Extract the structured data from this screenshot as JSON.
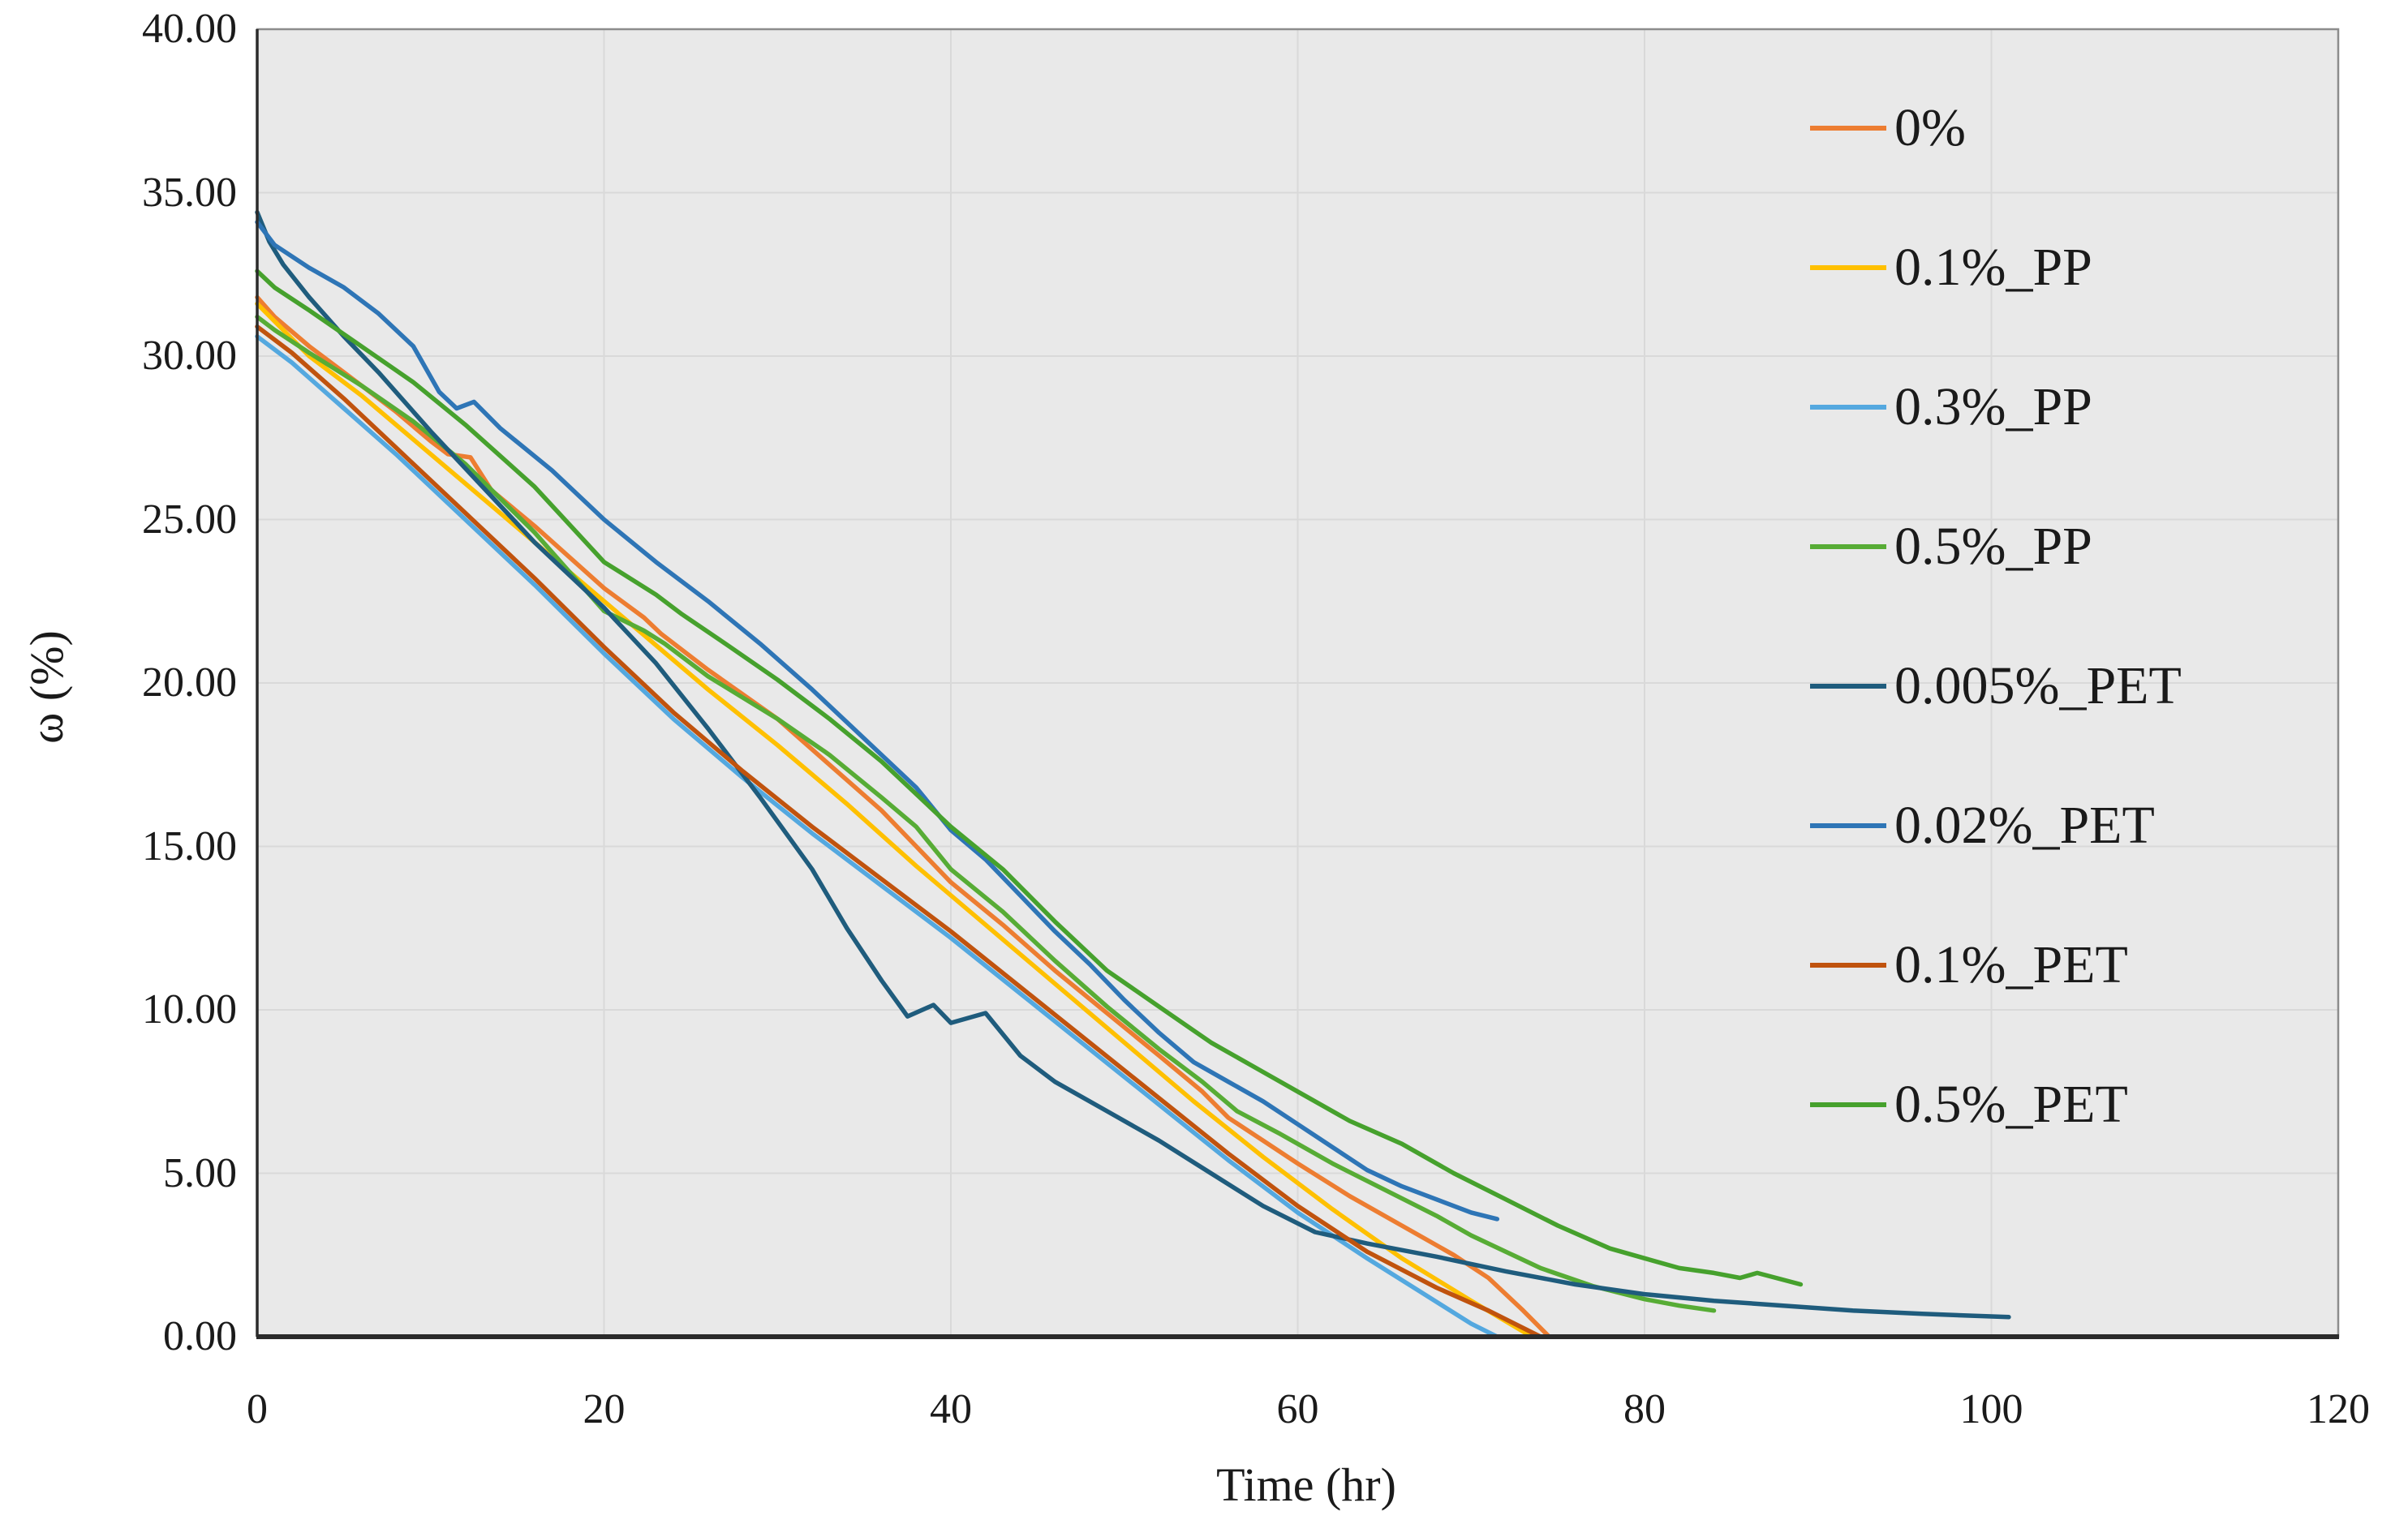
{
  "chart_data": {
    "type": "line",
    "title": "",
    "xlabel": "Time (hr)",
    "ylabel": "ω (%)",
    "xlim": [
      0,
      120
    ],
    "ylim": [
      0,
      40
    ],
    "x_ticks": [
      "0",
      "20",
      "40",
      "60",
      "80",
      "100",
      "120"
    ],
    "x_tick_values": [
      0,
      20,
      40,
      60,
      80,
      100,
      120
    ],
    "y_ticks": [
      "0.00",
      "5.00",
      "10.00",
      "15.00",
      "20.00",
      "25.00",
      "30.00",
      "35.00",
      "40.00"
    ],
    "y_tick_values": [
      0,
      5,
      10,
      15,
      20,
      25,
      30,
      35,
      40
    ],
    "grid": true,
    "legend_position": "inside-right",
    "colors": {
      "plot_background": "#e9e9e9",
      "page_background": "#ffffff",
      "gridline": "#d9d9d9",
      "plot_border": "#8c8c8c",
      "axis_line": "#2b2b2b",
      "text": "#1a1a1a"
    },
    "series": [
      {
        "name": "0%",
        "color": "#ED7D31",
        "points": [
          [
            0,
            31.8
          ],
          [
            1,
            31.2
          ],
          [
            3,
            30.3
          ],
          [
            5,
            29.5
          ],
          [
            8,
            28.3
          ],
          [
            10,
            27.4
          ],
          [
            11,
            27.0
          ],
          [
            12.3,
            26.9
          ],
          [
            13.5,
            25.9
          ],
          [
            16,
            24.8
          ],
          [
            20,
            22.9
          ],
          [
            22.3,
            22.0
          ],
          [
            23.3,
            21.5
          ],
          [
            26,
            20.4
          ],
          [
            30,
            18.9
          ],
          [
            33,
            17.5
          ],
          [
            36,
            16.1
          ],
          [
            38,
            15.0
          ],
          [
            40,
            13.9
          ],
          [
            43,
            12.6
          ],
          [
            46,
            11.2
          ],
          [
            49,
            9.9
          ],
          [
            52,
            8.6
          ],
          [
            54.5,
            7.5
          ],
          [
            56,
            6.7
          ],
          [
            58,
            6.0
          ],
          [
            60,
            5.3
          ],
          [
            63,
            4.3
          ],
          [
            66,
            3.4
          ],
          [
            69,
            2.5
          ],
          [
            71,
            1.8
          ],
          [
            73,
            0.8
          ],
          [
            74.5,
            0
          ]
        ]
      },
      {
        "name": "0.1%_PP",
        "color": "#FFC000",
        "points": [
          [
            0,
            31.6
          ],
          [
            3,
            30.0
          ],
          [
            6,
            28.8
          ],
          [
            10,
            27.0
          ],
          [
            14,
            25.2
          ],
          [
            18,
            23.4
          ],
          [
            22,
            21.6
          ],
          [
            26,
            19.8
          ],
          [
            30,
            18.1
          ],
          [
            34,
            16.3
          ],
          [
            38,
            14.4
          ],
          [
            42,
            12.6
          ],
          [
            46,
            10.8
          ],
          [
            50,
            9.0
          ],
          [
            54,
            7.2
          ],
          [
            58,
            5.5
          ],
          [
            62,
            3.9
          ],
          [
            66,
            2.4
          ],
          [
            70,
            1.1
          ],
          [
            73.5,
            0
          ]
        ]
      },
      {
        "name": "0.3%_PP",
        "color": "#54A8DF",
        "points": [
          [
            0,
            30.6
          ],
          [
            2,
            29.8
          ],
          [
            5,
            28.4
          ],
          [
            8,
            27.0
          ],
          [
            12,
            25.0
          ],
          [
            16,
            23.0
          ],
          [
            20,
            20.9
          ],
          [
            24,
            18.9
          ],
          [
            28,
            17.1
          ],
          [
            32,
            15.4
          ],
          [
            36,
            13.8
          ],
          [
            40,
            12.2
          ],
          [
            44,
            10.5
          ],
          [
            48,
            8.8
          ],
          [
            52,
            7.1
          ],
          [
            56,
            5.4
          ],
          [
            60,
            3.8
          ],
          [
            64,
            2.4
          ],
          [
            67,
            1.4
          ],
          [
            70,
            0.4
          ],
          [
            71.5,
            0
          ]
        ]
      },
      {
        "name": "0.5%_PP",
        "color": "#57AC35",
        "points": [
          [
            0,
            31.2
          ],
          [
            1,
            30.8
          ],
          [
            3,
            30.1
          ],
          [
            6,
            29.1
          ],
          [
            9,
            28.0
          ],
          [
            12,
            26.7
          ],
          [
            16,
            24.6
          ],
          [
            20,
            22.2
          ],
          [
            22.3,
            21.6
          ],
          [
            23.5,
            21.2
          ],
          [
            26,
            20.2
          ],
          [
            30,
            18.9
          ],
          [
            33,
            17.8
          ],
          [
            36,
            16.5
          ],
          [
            38,
            15.6
          ],
          [
            40,
            14.3
          ],
          [
            43,
            13.0
          ],
          [
            46,
            11.5
          ],
          [
            49,
            10.1
          ],
          [
            52,
            8.8
          ],
          [
            54.5,
            7.8
          ],
          [
            56.5,
            6.9
          ],
          [
            59,
            6.2
          ],
          [
            62,
            5.3
          ],
          [
            65,
            4.5
          ],
          [
            68,
            3.7
          ],
          [
            70,
            3.1
          ],
          [
            72,
            2.6
          ],
          [
            74,
            2.1
          ],
          [
            77,
            1.55
          ],
          [
            80,
            1.15
          ],
          [
            82,
            0.95
          ],
          [
            84,
            0.8
          ]
        ]
      },
      {
        "name": "0.005%_PET",
        "color": "#1F5C7D",
        "points": [
          [
            0,
            34.4
          ],
          [
            0.7,
            33.5
          ],
          [
            1.5,
            32.8
          ],
          [
            3,
            31.8
          ],
          [
            5,
            30.6
          ],
          [
            7,
            29.5
          ],
          [
            10,
            27.7
          ],
          [
            13,
            26.0
          ],
          [
            16,
            24.3
          ],
          [
            20,
            22.3
          ],
          [
            23,
            20.6
          ],
          [
            26,
            18.6
          ],
          [
            29,
            16.5
          ],
          [
            32,
            14.3
          ],
          [
            34,
            12.5
          ],
          [
            36,
            10.9
          ],
          [
            37.5,
            9.8
          ],
          [
            39,
            10.15
          ],
          [
            40,
            9.6
          ],
          [
            42,
            9.9
          ],
          [
            44,
            8.6
          ],
          [
            46,
            7.8
          ],
          [
            49,
            6.9
          ],
          [
            52,
            6.0
          ],
          [
            55,
            5.0
          ],
          [
            58,
            4.0
          ],
          [
            61,
            3.2
          ],
          [
            64,
            2.85
          ],
          [
            68,
            2.45
          ],
          [
            72,
            2.0
          ],
          [
            76,
            1.6
          ],
          [
            80,
            1.3
          ],
          [
            84,
            1.1
          ],
          [
            88,
            0.95
          ],
          [
            92,
            0.8
          ],
          [
            96,
            0.7
          ],
          [
            101,
            0.6
          ]
        ]
      },
      {
        "name": "0.02%_PET",
        "color": "#2E75B6",
        "points": [
          [
            0,
            34.1
          ],
          [
            1,
            33.4
          ],
          [
            3,
            32.7
          ],
          [
            5,
            32.1
          ],
          [
            7,
            31.3
          ],
          [
            9,
            30.3
          ],
          [
            10.5,
            28.9
          ],
          [
            11.5,
            28.4
          ],
          [
            12.5,
            28.6
          ],
          [
            14,
            27.8
          ],
          [
            17,
            26.5
          ],
          [
            20,
            25.0
          ],
          [
            23,
            23.7
          ],
          [
            26,
            22.5
          ],
          [
            29,
            21.2
          ],
          [
            32,
            19.8
          ],
          [
            35,
            18.3
          ],
          [
            38,
            16.8
          ],
          [
            40,
            15.5
          ],
          [
            42,
            14.6
          ],
          [
            44,
            13.5
          ],
          [
            46,
            12.4
          ],
          [
            48,
            11.4
          ],
          [
            50,
            10.3
          ],
          [
            52,
            9.3
          ],
          [
            54,
            8.4
          ],
          [
            56,
            7.8
          ],
          [
            58,
            7.2
          ],
          [
            60,
            6.5
          ],
          [
            62,
            5.8
          ],
          [
            64,
            5.1
          ],
          [
            66,
            4.6
          ],
          [
            68,
            4.2
          ],
          [
            70,
            3.8
          ],
          [
            71.5,
            3.6
          ]
        ]
      },
      {
        "name": "0.1%_PET",
        "color": "#C0530E",
        "points": [
          [
            0,
            30.9
          ],
          [
            2,
            30.1
          ],
          [
            5,
            28.7
          ],
          [
            8,
            27.2
          ],
          [
            12,
            25.2
          ],
          [
            16,
            23.2
          ],
          [
            20,
            21.1
          ],
          [
            24,
            19.1
          ],
          [
            28,
            17.3
          ],
          [
            32,
            15.6
          ],
          [
            36,
            14.0
          ],
          [
            40,
            12.4
          ],
          [
            44,
            10.7
          ],
          [
            48,
            9.0
          ],
          [
            52,
            7.3
          ],
          [
            56,
            5.6
          ],
          [
            60,
            4.0
          ],
          [
            64,
            2.6
          ],
          [
            68,
            1.5
          ],
          [
            71,
            0.8
          ],
          [
            74,
            0
          ]
        ]
      },
      {
        "name": "0.5%_PET",
        "color": "#46A12D",
        "points": [
          [
            0,
            32.6
          ],
          [
            1,
            32.1
          ],
          [
            3,
            31.4
          ],
          [
            6,
            30.3
          ],
          [
            9,
            29.2
          ],
          [
            12,
            27.9
          ],
          [
            16,
            26.0
          ],
          [
            20,
            23.7
          ],
          [
            23,
            22.7
          ],
          [
            24.5,
            22.1
          ],
          [
            27,
            21.2
          ],
          [
            30,
            20.1
          ],
          [
            33,
            18.9
          ],
          [
            36,
            17.6
          ],
          [
            38,
            16.6
          ],
          [
            40,
            15.6
          ],
          [
            43,
            14.3
          ],
          [
            46,
            12.7
          ],
          [
            49,
            11.2
          ],
          [
            52,
            10.1
          ],
          [
            55,
            9.0
          ],
          [
            58,
            8.1
          ],
          [
            60,
            7.5
          ],
          [
            63,
            6.6
          ],
          [
            66,
            5.9
          ],
          [
            69,
            5.0
          ],
          [
            72,
            4.2
          ],
          [
            75,
            3.4
          ],
          [
            78,
            2.7
          ],
          [
            80,
            2.4
          ],
          [
            82,
            2.1
          ],
          [
            84,
            1.95
          ],
          [
            85.5,
            1.8
          ],
          [
            86.5,
            1.95
          ],
          [
            89,
            1.6
          ]
        ]
      }
    ]
  }
}
